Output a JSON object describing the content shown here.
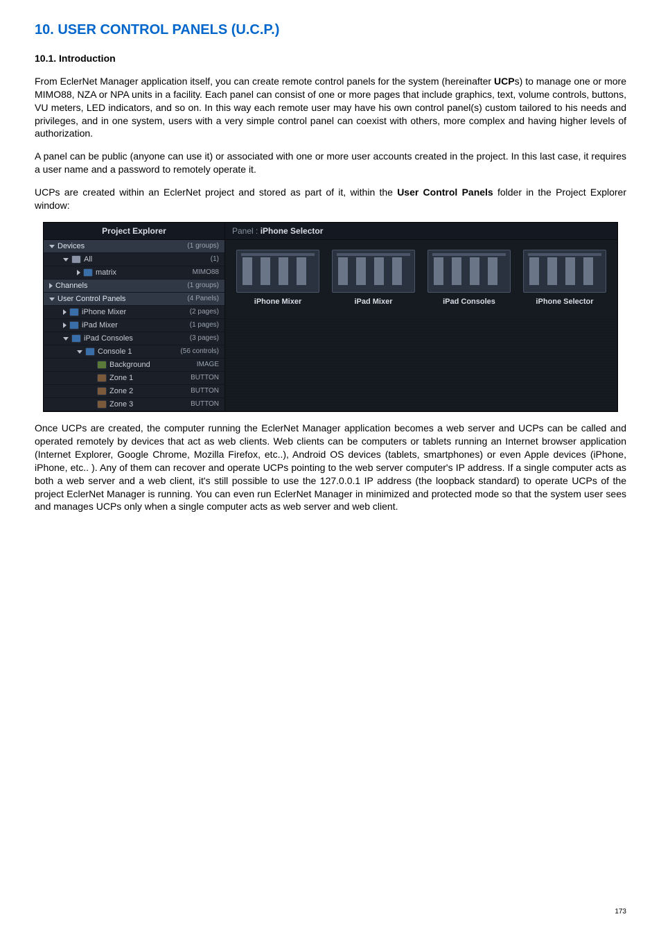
{
  "doc": {
    "title": "10. USER CONTROL PANELS (U.C.P.)",
    "sub1": "10.1. Introduction",
    "p1a": "From EclerNet Manager application itself, you can create remote control panels for the system (hereinafter ",
    "p1b": "UCP",
    "p1c": "s) to manage one or more MIMO88, NZA or NPA units in a facility. Each panel can consist of one or more pages that include graphics, text, volume controls, buttons, VU meters, LED indicators, and so on. In this way each remote user may have his own control panel(s) custom tailored to his needs and privileges, and in one system, users with a very simple control panel can coexist with others, more complex and having higher levels of authorization.",
    "p2": "A panel can be public (anyone can use it) or associated with one or more user accounts created in the project. In this last case, it requires a user name and a password to remotely operate it.",
    "p3a": "UCPs are created within an EclerNet project and stored as part of it, within the ",
    "p3b": "User Control Panels",
    "p3c": " folder in the Project Explorer window:",
    "p4": "Once UCPs are created, the computer running the EclerNet Manager application becomes a web server and UCPs can be called and operated remotely by devices that act as web clients. Web clients can be computers or tablets running an Internet browser application (Internet Explorer, Google Chrome, Mozilla Firefox, etc..), Android OS devices (tablets, smartphones) or even Apple devices (iPhone, iPhone, etc.. ). Any of them can recover and operate UCPs pointing to the web server computer's IP address.  If a single computer acts as both a web server and a web client, it's still possible to use the 127.0.0.1 IP address (the loopback standard) to operate UCPs of the project EclerNet Manager is running. You can even run EclerNet Manager in minimized and protected mode so that the system user sees and manages UCPs only when a single computer acts as web server and web client.",
    "page_number": "173"
  },
  "shot": {
    "explorer_title": "Project Explorer",
    "panel_title_prefix": "Panel : ",
    "panel_title_name": "iPhone Selector",
    "tree": [
      {
        "type": "header",
        "chev": "down",
        "label": "Devices",
        "meta": "(1 groups)",
        "pad": 0
      },
      {
        "type": "row",
        "chev": "down",
        "icon": "folder",
        "label": "All",
        "meta": "(1)",
        "pad": 1
      },
      {
        "type": "row",
        "chev": "right",
        "icon": "panel",
        "label": "matrix",
        "meta": "MIMO88",
        "pad": 2
      },
      {
        "type": "header",
        "chev": "right",
        "label": "Channels",
        "meta": "(1 groups)",
        "pad": 0
      },
      {
        "type": "header",
        "chev": "down",
        "label": "User Control Panels",
        "meta": "(4 Panels)",
        "pad": 0
      },
      {
        "type": "row",
        "chev": "right",
        "icon": "panel",
        "label": "iPhone Mixer",
        "meta": "(2 pages)",
        "pad": 1
      },
      {
        "type": "row",
        "chev": "right",
        "icon": "panel",
        "label": "iPad Mixer",
        "meta": "(1 pages)",
        "pad": 1
      },
      {
        "type": "row",
        "chev": "down",
        "icon": "panel",
        "label": "iPad Consoles",
        "meta": "(3 pages)",
        "pad": 1
      },
      {
        "type": "row",
        "chev": "down",
        "icon": "panel",
        "label": "Console 1",
        "meta": "(56 controls)",
        "pad": 2
      },
      {
        "type": "row",
        "chev": "",
        "icon": "img",
        "label": "Background",
        "meta": "IMAGE",
        "pad": 3
      },
      {
        "type": "row",
        "chev": "",
        "icon": "btn",
        "label": "Zone 1",
        "meta": "BUTTON",
        "pad": 3
      },
      {
        "type": "row",
        "chev": "",
        "icon": "btn",
        "label": "Zone 2",
        "meta": "BUTTON",
        "pad": 3
      },
      {
        "type": "row",
        "chev": "",
        "icon": "btn",
        "label": "Zone 3",
        "meta": "BUTTON",
        "pad": 3
      }
    ],
    "thumbs": [
      {
        "label": "iPhone Mixer"
      },
      {
        "label": "iPad Mixer"
      },
      {
        "label": "iPad Consoles"
      },
      {
        "label": "iPhone Selector"
      }
    ]
  },
  "colors": {
    "link_blue": "#0066cc",
    "shot_bg": "#1b2028",
    "shot_panel": "#161b22",
    "shot_header": "#303845",
    "shot_text": "#c8cdd4"
  }
}
